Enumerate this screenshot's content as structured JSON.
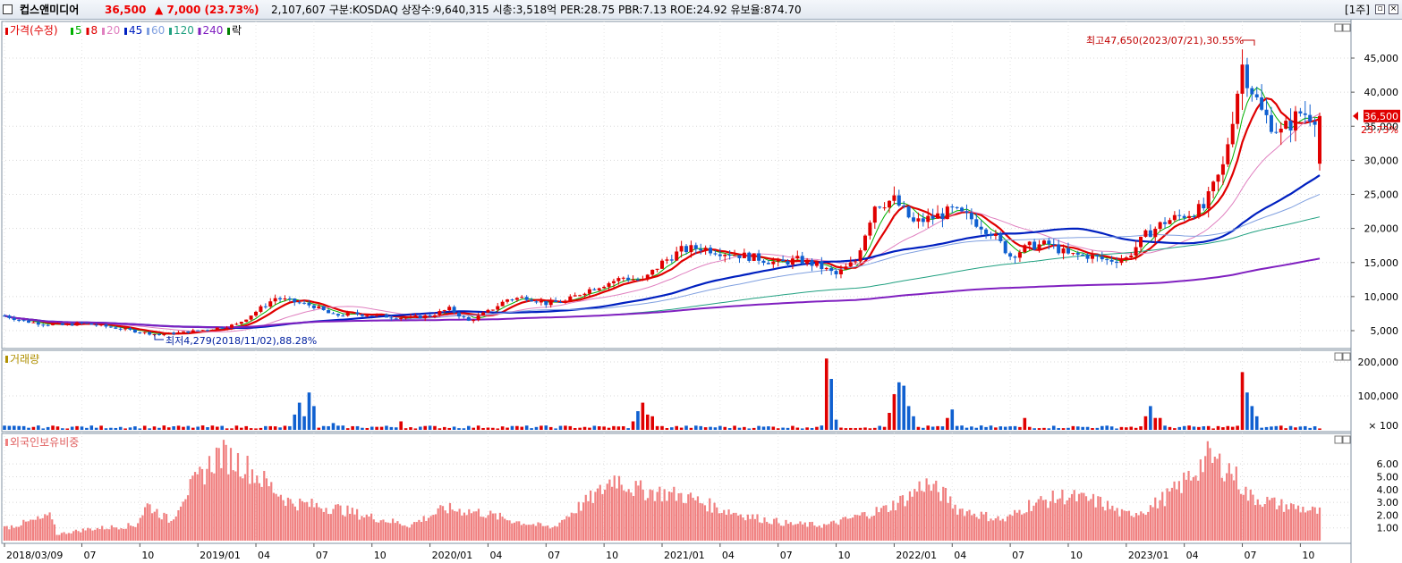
{
  "header": {
    "name": "컵스앤미디어",
    "price": "36,500",
    "change": "▲ 7,000 (23.73%)",
    "info": "2,107,607  구분:KOSDAQ 상장수:9,640,315 시총:3,518억 PER:28.75 PBR:7.13 ROE:24.92 유보율:874.70",
    "period": "[1주]"
  },
  "legend": {
    "price": {
      "label": "가격(수정)",
      "color": "#e00000"
    },
    "ma": [
      {
        "label": "5",
        "color": "#00b000"
      },
      {
        "label": "8",
        "color": "#e00000"
      },
      {
        "label": "20",
        "color": "#e080c0"
      },
      {
        "label": "45",
        "color": "#0020c0"
      },
      {
        "label": "60",
        "color": "#80a0e0"
      },
      {
        "label": "120",
        "color": "#20a080"
      },
      {
        "label": "240",
        "color": "#8020c0"
      }
    ],
    "extra": {
      "label": "락",
      "color": "#008000"
    }
  },
  "volume_title": "거래량",
  "foreign_title": "외국인보유비중",
  "annotations": {
    "high": "최고47,650(2023/07/21),30.55%",
    "low": "최저4,279(2018/11/02),88.28%"
  },
  "current": {
    "price": "36,500",
    "pct": "23.73%"
  },
  "chart_data": {
    "type": "candlestick",
    "price_axis": {
      "ticks": [
        5000,
        10000,
        15000,
        20000,
        25000,
        30000,
        35000,
        40000,
        45000
      ],
      "labels": [
        "5,000",
        "10,000",
        "15,000",
        "20,000",
        "25,000",
        "30,000",
        "35,000",
        "40,000",
        "45,000"
      ]
    },
    "volume_axis": {
      "ticks": [
        100000,
        200000
      ],
      "labels": [
        "200,000",
        "100,000",
        "× 100"
      ]
    },
    "foreign_axis": {
      "ticks": [
        1,
        2,
        3,
        4,
        5,
        6
      ],
      "labels": [
        "1.00",
        "2.00",
        "3.00",
        "4.00",
        "5.00",
        "6.00"
      ]
    },
    "x_labels": [
      "2018/03/09",
      "07",
      "10",
      "2019/01",
      "04",
      "07",
      "10",
      "2020/01",
      "04",
      "07",
      "10",
      "2021/01",
      "04",
      "07",
      "10",
      "2022/01",
      "04",
      "07",
      "10",
      "2023/01",
      "04",
      "07",
      "10"
    ],
    "price_path": [
      [
        "2018-03",
        7200
      ],
      [
        "2018-04",
        6400
      ],
      [
        "2018-05",
        6000
      ],
      [
        "2018-06",
        5800
      ],
      [
        "2018-07",
        6100
      ],
      [
        "2018-08",
        5700
      ],
      [
        "2018-09",
        5300
      ],
      [
        "2018-10",
        4800
      ],
      [
        "2018-11",
        4400
      ],
      [
        "2018-12",
        4700
      ],
      [
        "2019-01",
        5000
      ],
      [
        "2019-02",
        5400
      ],
      [
        "2019-03",
        5900
      ],
      [
        "2019-04",
        7800
      ],
      [
        "2019-05",
        9800
      ],
      [
        "2019-06",
        9200
      ],
      [
        "2019-07",
        8600
      ],
      [
        "2019-08",
        7200
      ],
      [
        "2019-09",
        7500
      ],
      [
        "2019-10",
        7300
      ],
      [
        "2019-11",
        7000
      ],
      [
        "2019-12",
        6900
      ],
      [
        "2020-01",
        7200
      ],
      [
        "2020-02",
        8200
      ],
      [
        "2020-03",
        6400
      ],
      [
        "2020-04",
        7800
      ],
      [
        "2020-05",
        9600
      ],
      [
        "2020-06",
        9900
      ],
      [
        "2020-07",
        9000
      ],
      [
        "2020-08",
        9300
      ],
      [
        "2020-09",
        10800
      ],
      [
        "2020-10",
        11800
      ],
      [
        "2020-11",
        12800
      ],
      [
        "2020-12",
        12300
      ],
      [
        "2021-01",
        15000
      ],
      [
        "2021-02",
        16800
      ],
      [
        "2021-03",
        17200
      ],
      [
        "2021-04",
        16600
      ],
      [
        "2021-05",
        16100
      ],
      [
        "2021-06",
        15600
      ],
      [
        "2021-07",
        14900
      ],
      [
        "2021-08",
        15400
      ],
      [
        "2021-09",
        14600
      ],
      [
        "2021-10",
        13200
      ],
      [
        "2021-11",
        15200
      ],
      [
        "2021-12",
        23500
      ],
      [
        "2022-01",
        24200
      ],
      [
        "2022-02",
        20800
      ],
      [
        "2022-03",
        21600
      ],
      [
        "2022-04",
        22600
      ],
      [
        "2022-05",
        21400
      ],
      [
        "2022-06",
        19500
      ],
      [
        "2022-07",
        16000
      ],
      [
        "2022-08",
        17400
      ],
      [
        "2022-09",
        17700
      ],
      [
        "2022-10",
        16100
      ],
      [
        "2022-11",
        16000
      ],
      [
        "2022-12",
        15300
      ],
      [
        "2023-01",
        15600
      ],
      [
        "2023-02",
        19000
      ],
      [
        "2023-03",
        21000
      ],
      [
        "2023-04",
        22000
      ],
      [
        "2023-05",
        23000
      ],
      [
        "2023-06",
        29000
      ],
      [
        "2023-07",
        44000
      ],
      [
        "2023-08",
        37000
      ],
      [
        "2023-09",
        34000
      ],
      [
        "2023-10",
        37000
      ],
      [
        "2023-11",
        36500
      ]
    ]
  }
}
